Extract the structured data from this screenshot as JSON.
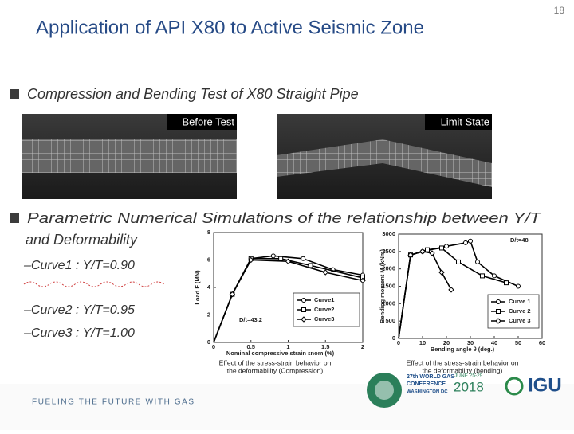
{
  "header": {
    "title": "Application of API X80 to Active Seismic Zone",
    "page_number": "18"
  },
  "bullets": [
    {
      "lines": [
        "Compression and Bending Test of X80 Straight Pipe"
      ]
    },
    {
      "lines": [
        "Parametric Numerical Simulations of the relationship between Y/T",
        "and Deformability"
      ]
    }
  ],
  "photos": [
    {
      "label": "Before Test"
    },
    {
      "label": "Limit State"
    }
  ],
  "curve_notes": [
    "–Curve1 : Y/T=0.90",
    "–Curve2 : Y/T=0.95",
    "–Curve3 : Y/T=1.00"
  ],
  "chart_data": [
    {
      "type": "line",
      "xlabel": "Nominal compressive strain εnom (%)",
      "ylabel": "Load F (MN)",
      "xlim": [
        0,
        2
      ],
      "xticks": [
        0,
        0.5,
        1,
        1.5,
        2
      ],
      "ylim": [
        0,
        8
      ],
      "yticks": [
        0,
        2,
        4,
        6,
        8
      ],
      "legend": "lower right",
      "annotation": "D/t=43.2",
      "caption": [
        "Effect of the stress-strain behavior on",
        "the deformability (Compression)"
      ],
      "series": [
        {
          "name": "Curve1",
          "color": "#000000",
          "marker": "circle",
          "x": [
            0,
            0.25,
            0.5,
            0.8,
            1.2,
            1.6,
            2
          ],
          "values": [
            0,
            3.5,
            6.1,
            6.3,
            6.1,
            5.3,
            4.9
          ]
        },
        {
          "name": "Curve2",
          "color": "#000000",
          "marker": "square",
          "x": [
            0,
            0.25,
            0.5,
            0.9,
            1.3,
            2
          ],
          "values": [
            0,
            3.5,
            6.1,
            6.1,
            5.6,
            4.7
          ]
        },
        {
          "name": "Curve3",
          "color": "#000000",
          "marker": "diamond",
          "x": [
            0,
            0.25,
            0.5,
            1,
            1.5,
            2
          ],
          "values": [
            0,
            3.5,
            6,
            5.9,
            5.1,
            4.5
          ]
        }
      ]
    },
    {
      "type": "line",
      "xlabel": "Bending angle θ (deg.)",
      "ylabel": "Bending moment M (kNm)",
      "xlim": [
        0,
        60
      ],
      "xticks": [
        0,
        10,
        20,
        30,
        40,
        50,
        60
      ],
      "ylim": [
        0,
        3000
      ],
      "yticks": [
        0,
        500,
        1000,
        1500,
        2000,
        2500,
        3000
      ],
      "legend": "lower right",
      "annotation": "D/t=48",
      "caption": [
        "Effect of the stress-strain behavior on",
        "the deformability (bending)"
      ],
      "series": [
        {
          "name": "Curve 1",
          "color": "#000000",
          "marker": "circle",
          "x": [
            0,
            5,
            10,
            20,
            28,
            30,
            33,
            40,
            50
          ],
          "values": [
            0,
            2400,
            2500,
            2650,
            2750,
            2800,
            2200,
            1800,
            1500
          ]
        },
        {
          "name": "Curve 2",
          "color": "#000000",
          "marker": "square",
          "x": [
            0,
            5,
            12,
            18,
            25,
            35,
            45
          ],
          "values": [
            0,
            2400,
            2550,
            2600,
            2200,
            1800,
            1600
          ]
        },
        {
          "name": "Curve 3",
          "color": "#000000",
          "marker": "diamond",
          "x": [
            0,
            5,
            10,
            14,
            18,
            22
          ],
          "values": [
            0,
            2400,
            2500,
            2450,
            1900,
            1400
          ]
        }
      ]
    }
  ],
  "footer": {
    "tagline": "FUELING THE FUTURE WITH GAS",
    "conference": [
      "27th WORLD GAS",
      "CONFERENCE",
      "WASHINGTON DC"
    ],
    "dates": "JUNE 25-29",
    "year": "2018",
    "org": "IGU"
  }
}
